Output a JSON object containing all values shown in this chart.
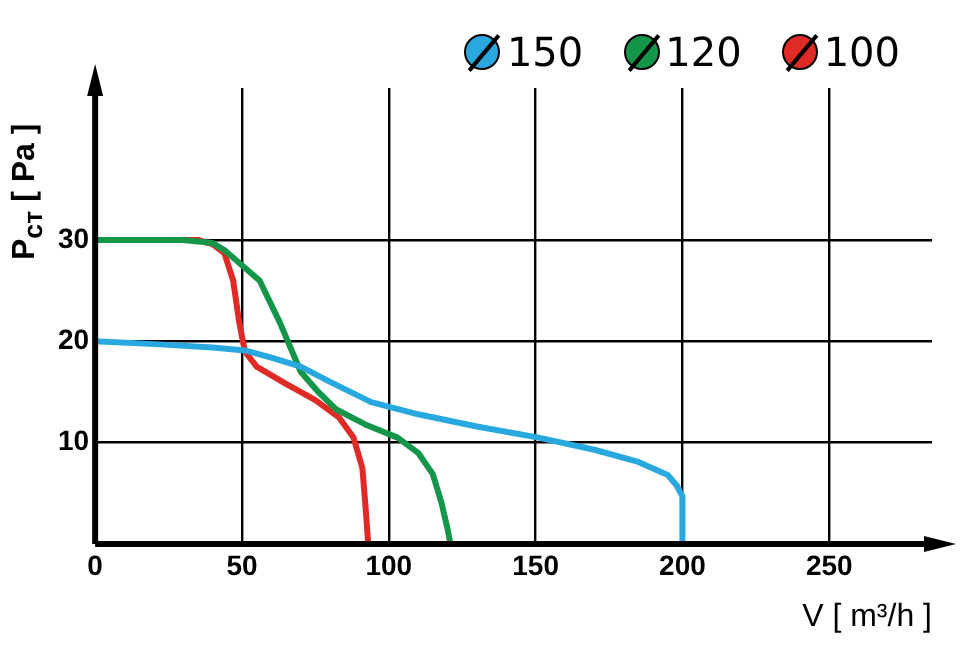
{
  "chart_data": {
    "type": "line",
    "xlabel": "V [ m³/h ]",
    "ylabel": "P$_{ст}$ [ Pa ]",
    "xlim": [
      0,
      285
    ],
    "ylim": [
      0,
      45
    ],
    "xticks": [
      0,
      50,
      100,
      150,
      200,
      250
    ],
    "yticks": [
      10,
      20,
      30
    ],
    "grid": true,
    "legend": "top right",
    "marker": "none",
    "line_style": "solid",
    "series": [
      {
        "name": "150",
        "color": "#29a8e0",
        "x": [
          0,
          22,
          40,
          51,
          60,
          70,
          80,
          94,
          110,
          130,
          151,
          170,
          185,
          195,
          198,
          200,
          200
        ],
        "values": [
          20,
          19.7,
          19.4,
          19.1,
          18.4,
          17.5,
          16,
          14,
          12.8,
          11.6,
          10.5,
          9.3,
          8.1,
          6.8,
          5.8,
          4.7,
          0
        ]
      },
      {
        "name": "120",
        "color": "#14964a",
        "x": [
          0,
          30,
          40,
          44,
          50,
          56,
          63,
          70,
          76,
          82,
          92,
          103,
          110,
          115,
          118,
          120,
          121
        ],
        "values": [
          30,
          30,
          29.7,
          29,
          27.5,
          26,
          21.8,
          17,
          15,
          13.3,
          11.8,
          10.5,
          9,
          6.9,
          4,
          1.5,
          0
        ]
      },
      {
        "name": "100",
        "color": "#e02a26",
        "x": [
          0,
          35,
          40,
          44,
          47,
          49,
          51,
          55,
          65,
          75,
          83,
          88,
          91,
          92,
          93
        ],
        "values": [
          30,
          30,
          29.6,
          28.7,
          26,
          22,
          19,
          17.5,
          15.8,
          14.2,
          12.5,
          10.5,
          7.5,
          4,
          0
        ]
      }
    ]
  }
}
